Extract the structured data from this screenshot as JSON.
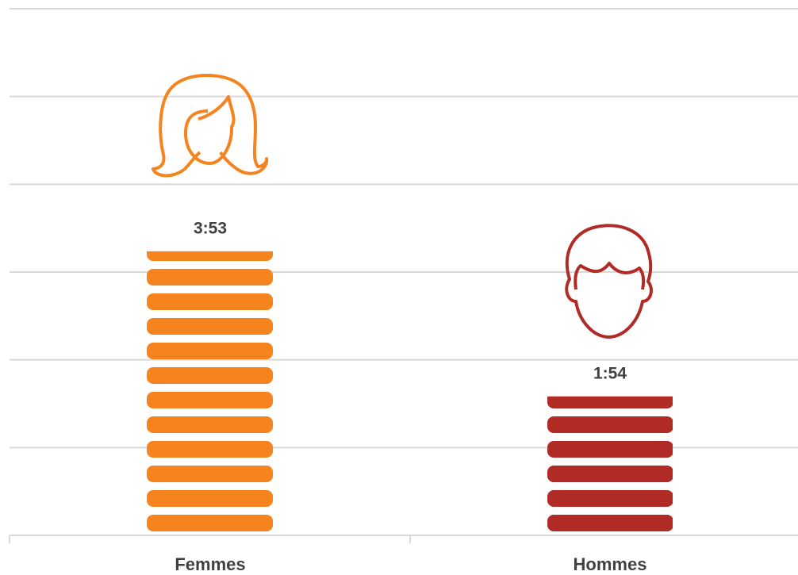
{
  "chart_data": {
    "type": "bar",
    "categories": [
      "Femmes",
      "Hommes"
    ],
    "values": [
      233,
      114
    ],
    "value_labels": [
      "3:53",
      "1:54"
    ],
    "colors": [
      "#f5841f",
      "#b02a26"
    ],
    "ylim": [
      0,
      432
    ],
    "yticks": [
      0,
      72,
      144,
      216,
      288,
      360,
      432
    ],
    "grid": true
  }
}
